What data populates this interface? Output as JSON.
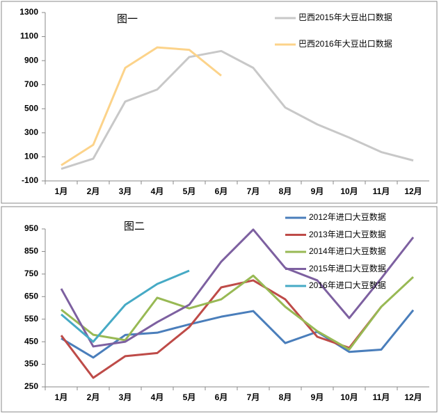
{
  "chart_data": [
    {
      "type": "line",
      "annotation": "图一",
      "categories": [
        "1月",
        "2月",
        "3月",
        "4月",
        "5月",
        "6月",
        "7月",
        "8月",
        "9月",
        "10月",
        "11月",
        "12月"
      ],
      "ylim": [
        -100,
        1300
      ],
      "yticks": [
        -100,
        100,
        300,
        500,
        700,
        900,
        1100,
        1300
      ],
      "series": [
        {
          "name": "巴西2015年大豆出口数据",
          "color": "#c8c8c8",
          "values": [
            0,
            85,
            560,
            660,
            930,
            980,
            840,
            510,
            370,
            260,
            140,
            70
          ]
        },
        {
          "name": "巴西2016年大豆出口数据",
          "color": "#fcd38a",
          "values": [
            30,
            200,
            840,
            1010,
            990,
            775,
            null,
            null,
            null,
            null,
            null,
            null
          ]
        }
      ]
    },
    {
      "type": "line",
      "annotation": "图二",
      "categories": [
        "1月",
        "2月",
        "3月",
        "4月",
        "5月",
        "6月",
        "7月",
        "8月",
        "9月",
        "10月",
        "11月",
        "12月"
      ],
      "ylim": [
        250,
        950
      ],
      "yticks": [
        250,
        350,
        450,
        550,
        650,
        750,
        850,
        950
      ],
      "series": [
        {
          "name": "2012年进口大豆数据",
          "color": "#4a7ebb",
          "values": [
            465,
            380,
            480,
            490,
            527,
            561,
            586,
            444,
            494,
            405,
            415,
            590
          ]
        },
        {
          "name": "2013年进口大豆数据",
          "color": "#be4b48",
          "values": [
            478,
            290,
            386,
            400,
            515,
            691,
            722,
            638,
            472,
            423,
            605,
            null
          ]
        },
        {
          "name": "2014年进口大豆数据",
          "color": "#98b954",
          "values": [
            592,
            481,
            457,
            645,
            598,
            638,
            743,
            605,
            497,
            416,
            605,
            737
          ]
        },
        {
          "name": "2015年进口大豆数据",
          "color": "#7d60a0",
          "values": [
            685,
            429,
            450,
            537,
            614,
            805,
            947,
            777,
            722,
            555,
            731,
            913
          ]
        },
        {
          "name": "2016年进口大豆数据",
          "color": "#46aac5",
          "values": [
            571,
            450,
            614,
            706,
            765,
            null,
            null,
            null,
            null,
            null,
            null,
            null
          ]
        }
      ]
    }
  ]
}
